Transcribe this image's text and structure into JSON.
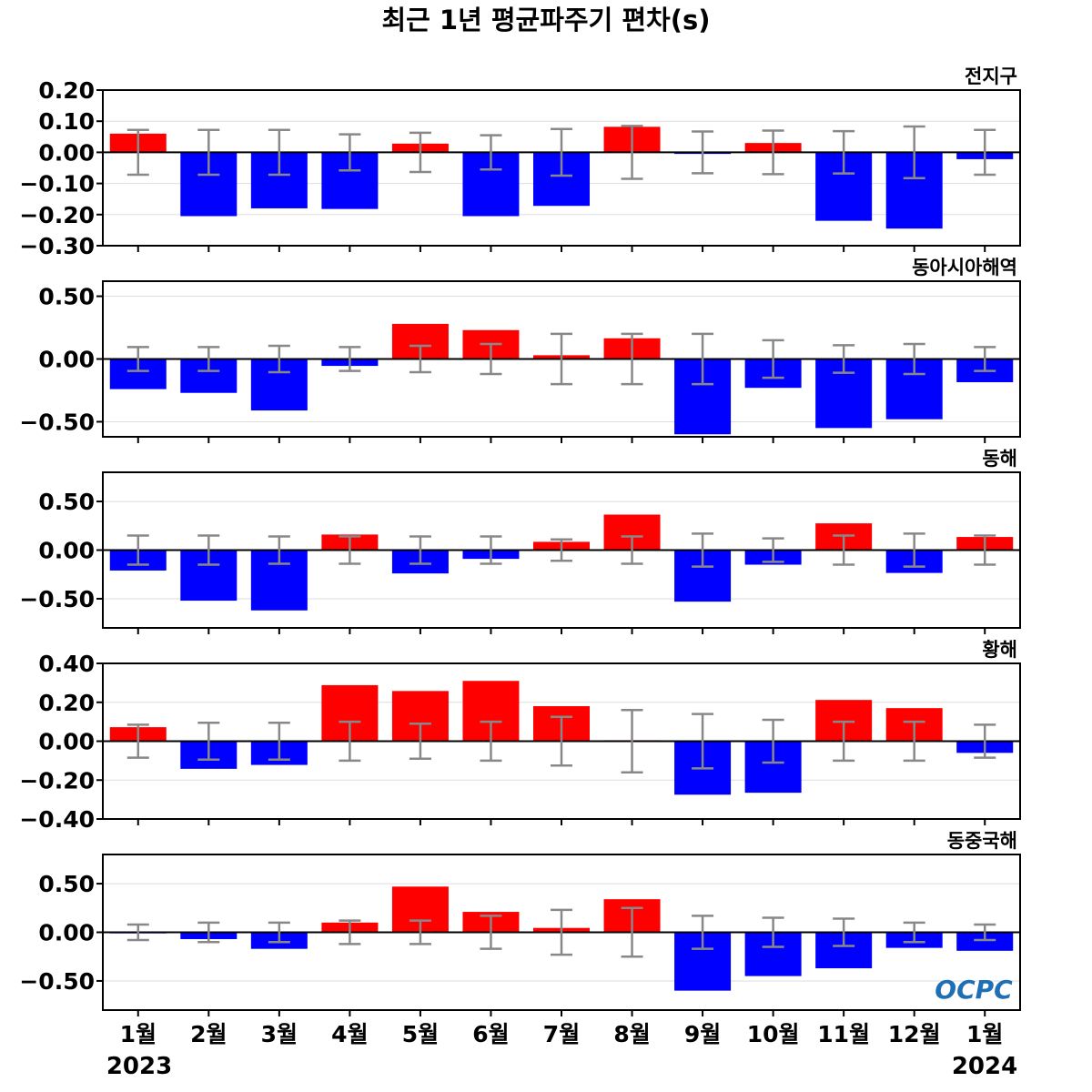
{
  "title": "최근 1년 평균파주기 편차(s)",
  "logo_text": "OCPC",
  "colors": {
    "positive": "#ff0000",
    "negative": "#0000ff",
    "error_bar": "#888888",
    "zero_line": "#000000",
    "grid": "#dddddd",
    "logo": "#1f6fb5"
  },
  "months": [
    "1월",
    "2월",
    "3월",
    "4월",
    "5월",
    "6월",
    "7월",
    "8월",
    "9월",
    "10월",
    "11월",
    "12월",
    "1월"
  ],
  "year_labels": {
    "start": "2023",
    "end": "2024"
  },
  "chart_data": [
    {
      "type": "bar",
      "panel_label": "전지구",
      "ylim": [
        -0.3,
        0.2
      ],
      "yticks": [
        0.2,
        0.1,
        0.0,
        -0.1,
        -0.2,
        -0.3
      ],
      "ytick_labels": [
        "0.20",
        "0.10",
        "0.00",
        "−0.10",
        "−0.20",
        "−0.30"
      ],
      "categories": [
        "1월",
        "2월",
        "3월",
        "4월",
        "5월",
        "6월",
        "7월",
        "8월",
        "9월",
        "10월",
        "11월",
        "12월",
        "1월"
      ],
      "values": [
        0.06,
        -0.205,
        -0.18,
        -0.182,
        0.028,
        -0.205,
        -0.172,
        0.082,
        -0.005,
        0.03,
        -0.22,
        -0.245,
        -0.022
      ],
      "error_bars": [
        0.072,
        0.072,
        0.072,
        0.058,
        0.063,
        0.055,
        0.075,
        0.085,
        0.067,
        0.07,
        0.068,
        0.083,
        0.072
      ]
    },
    {
      "type": "bar",
      "panel_label": "동아시아해역",
      "ylim": [
        -0.62,
        0.62
      ],
      "yticks": [
        0.5,
        0.0,
        -0.5
      ],
      "ytick_labels": [
        "0.50",
        "0.00",
        "−0.50"
      ],
      "categories": [
        "1월",
        "2월",
        "3월",
        "4월",
        "5월",
        "6월",
        "7월",
        "8월",
        "9월",
        "10월",
        "11월",
        "12월",
        "1월"
      ],
      "values": [
        -0.24,
        -0.27,
        -0.41,
        -0.055,
        0.28,
        0.23,
        0.03,
        0.165,
        -0.6,
        -0.23,
        -0.55,
        -0.48,
        -0.185
      ],
      "error_bars": [
        0.095,
        0.095,
        0.105,
        0.095,
        0.105,
        0.12,
        0.2,
        0.2,
        0.2,
        0.15,
        0.11,
        0.12,
        0.095
      ]
    },
    {
      "type": "bar",
      "panel_label": "동해",
      "ylim": [
        -0.8,
        0.8
      ],
      "yticks": [
        0.5,
        0.0,
        -0.5
      ],
      "ytick_labels": [
        "0.50",
        "0.00",
        "−0.50"
      ],
      "categories": [
        "1월",
        "2월",
        "3월",
        "4월",
        "5월",
        "6월",
        "7월",
        "8월",
        "9월",
        "10월",
        "11월",
        "12월",
        "1월"
      ],
      "values": [
        -0.21,
        -0.52,
        -0.62,
        0.16,
        -0.24,
        -0.09,
        0.085,
        0.365,
        -0.53,
        -0.15,
        0.275,
        -0.235,
        0.135
      ],
      "error_bars": [
        0.15,
        0.15,
        0.14,
        0.14,
        0.14,
        0.14,
        0.11,
        0.14,
        0.17,
        0.12,
        0.15,
        0.17,
        0.15
      ]
    },
    {
      "type": "bar",
      "panel_label": "황해",
      "ylim": [
        -0.4,
        0.4
      ],
      "yticks": [
        0.4,
        0.2,
        0.0,
        -0.2,
        -0.4
      ],
      "ytick_labels": [
        "0.40",
        "0.20",
        "0.00",
        "−0.20",
        "−0.40"
      ],
      "categories": [
        "1월",
        "2월",
        "3월",
        "4월",
        "5월",
        "6월",
        "7월",
        "8월",
        "9월",
        "10월",
        "11월",
        "12월",
        "1월"
      ],
      "values": [
        0.072,
        -0.142,
        -0.122,
        0.288,
        0.258,
        0.31,
        0.18,
        0.005,
        -0.275,
        -0.265,
        0.212,
        0.17,
        -0.06
      ],
      "error_bars": [
        0.085,
        0.095,
        0.095,
        0.1,
        0.09,
        0.1,
        0.125,
        0.16,
        0.14,
        0.11,
        0.1,
        0.1,
        0.085
      ]
    },
    {
      "type": "bar",
      "panel_label": "동중국해",
      "ylim": [
        -0.8,
        0.8
      ],
      "yticks": [
        0.5,
        0.0,
        -0.5
      ],
      "ytick_labels": [
        "0.50",
        "0.00",
        "−0.50"
      ],
      "categories": [
        "1월",
        "2월",
        "3월",
        "4월",
        "5월",
        "6월",
        "7월",
        "8월",
        "9월",
        "10월",
        "11월",
        "12월",
        "1월"
      ],
      "values": [
        -0.01,
        -0.07,
        -0.17,
        0.1,
        0.47,
        0.21,
        0.045,
        0.34,
        -0.6,
        -0.45,
        -0.37,
        -0.16,
        -0.19
      ],
      "error_bars": [
        0.08,
        0.1,
        0.1,
        0.12,
        0.12,
        0.17,
        0.23,
        0.25,
        0.17,
        0.15,
        0.14,
        0.1,
        0.08
      ]
    }
  ]
}
